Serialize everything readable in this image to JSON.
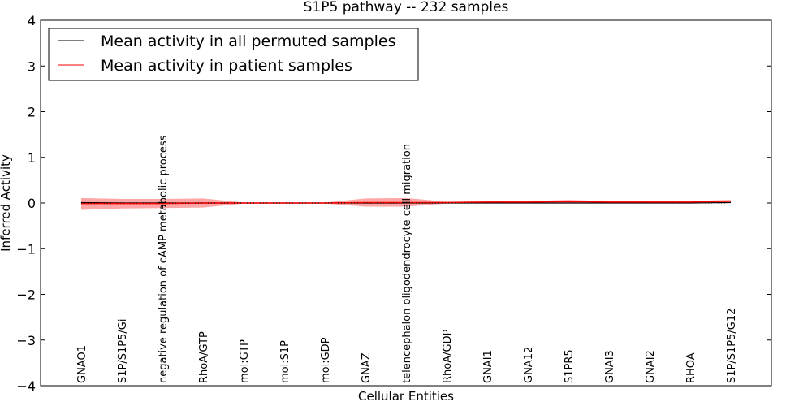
{
  "chart_data": {
    "type": "line",
    "title": "S1P5 pathway -- 232 samples",
    "xlabel": "Cellular Entities",
    "ylabel": "Inferred Activity",
    "ylim": [
      -4,
      4
    ],
    "yticks": [
      "4",
      "3",
      "2",
      "1",
      "0",
      "−1",
      "−2",
      "−3",
      "−4"
    ],
    "ytick_values": [
      4,
      3,
      2,
      1,
      0,
      -1,
      -2,
      -3,
      -4
    ],
    "legend_position": "top-left",
    "categories": [
      "GNAO1",
      "S1P/S1P5/Gi",
      "negative regulation of cAMP metabolic process",
      "RhoA/GTP",
      "mol:GTP",
      "mol:S1P",
      "mol:GDP",
      "GNAZ",
      "telencephalon oligodendrocyte cell migration",
      "RhoA/GDP",
      "GNAI1",
      "GNA12",
      "S1PR5",
      "GNAI3",
      "GNAI2",
      "RHOA",
      "S1P/S1P5/G12"
    ],
    "series": [
      {
        "name": "Mean activity in all permuted samples",
        "color": "#000000",
        "values": [
          0.01,
          0,
          0,
          0,
          0,
          0,
          0,
          0,
          0,
          0,
          0,
          0,
          0,
          0,
          0,
          0,
          0.01
        ],
        "band_low": [
          -0.02,
          -0.02,
          -0.02,
          -0.02,
          -0.01,
          -0.01,
          -0.01,
          -0.02,
          -0.02,
          -0.01,
          -0.01,
          -0.01,
          -0.01,
          -0.01,
          -0.01,
          -0.01,
          -0.01
        ],
        "band_high": [
          0.02,
          0.02,
          0.02,
          0.02,
          0.01,
          0.01,
          0.01,
          0.02,
          0.02,
          0.01,
          0.01,
          0.01,
          0.01,
          0.01,
          0.01,
          0.01,
          0.02
        ]
      },
      {
        "name": "Mean activity in patient samples",
        "color": "#ff0000",
        "values": [
          -0.01,
          -0.01,
          -0.01,
          0,
          0,
          0,
          0,
          0.01,
          0.01,
          0.01,
          0.02,
          0.02,
          0.03,
          0.02,
          0.02,
          0.02,
          0.04
        ],
        "band_low": [
          -0.15,
          -0.12,
          -0.11,
          -0.1,
          -0.01,
          -0.01,
          -0.01,
          -0.08,
          -0.08,
          -0.01,
          0,
          0,
          0,
          0,
          0,
          0,
          0.02
        ],
        "band_high": [
          0.11,
          0.09,
          0.09,
          0.1,
          0.01,
          0.01,
          0.01,
          0.1,
          0.11,
          0.03,
          0.04,
          0.04,
          0.07,
          0.04,
          0.04,
          0.04,
          0.07
        ]
      }
    ]
  }
}
